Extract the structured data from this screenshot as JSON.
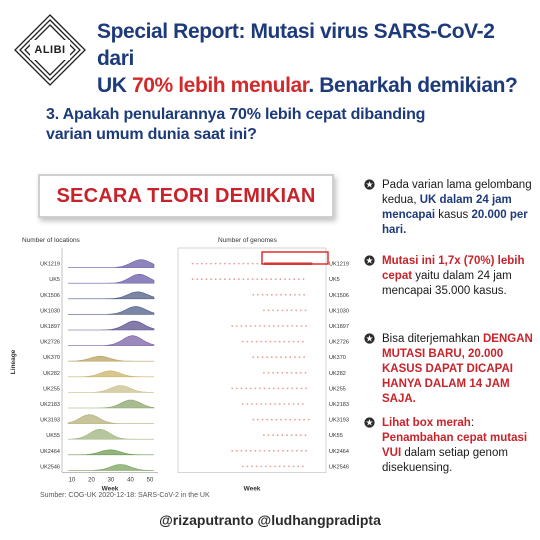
{
  "logo": {
    "text": "ALIBI"
  },
  "title": {
    "line1": "Special Report: Mutasi virus SARS-CoV-2 dari",
    "line2_a": "UK ",
    "line2_b": "70% lebih menular",
    "line2_c": ". Benarkah demikian?"
  },
  "question": {
    "line1": "3. Apakah penularannya 70% lebih cepat dibanding",
    "line2": "varian umum dunia saat ini?"
  },
  "banner": {
    "text": "SECARA TEORI DEMIKIAN"
  },
  "chart_data": [
    {
      "type": "area",
      "title": "Number of locations",
      "xlabel": "Week",
      "ylabel": "Lineage",
      "xticks": [
        "10",
        "20",
        "30",
        "40",
        "50"
      ],
      "categories": [
        "UK1219",
        "UK5",
        "UK1506",
        "UK1030",
        "UK1897",
        "UK2726",
        "UK370",
        "UK282",
        "UK255",
        "UK2183",
        "UK3193",
        "UK55",
        "UK2464",
        "UK2546"
      ],
      "colors": [
        "#6a5aa8",
        "#6a5aa8",
        "#4d5d86",
        "#4d5d86",
        "#5b4f8f",
        "#7b62a6",
        "#b8a15d",
        "#c9b46a",
        "#c9c08a",
        "#8aa56b",
        "#b6b07a",
        "#9db37c",
        "#6f9b52",
        "#79a35c"
      ]
    },
    {
      "type": "scatter",
      "title": "Number of genomes",
      "xlabel": "Week",
      "categories": [
        "UK1219",
        "UK5",
        "UK1506",
        "UK1030",
        "UK1897",
        "UK2726",
        "UK370",
        "UK282",
        "UK255",
        "UK2183",
        "UK3193",
        "UK55",
        "UK2464",
        "UK2546"
      ],
      "highlight": "UK1219",
      "highlight_color": "#e02020"
    }
  ],
  "source": {
    "text": "Sumber: COG-UK 2020-12-18: SARS-CoV-2 in the UK"
  },
  "bullets": {
    "b1": {
      "t1": "Pada varian lama gelombang kedua, ",
      "t2": "UK dalam 24 jam mencapai",
      "t3": " kasus ",
      "t4": "20.000 per hari."
    },
    "b2": {
      "t1": "Mutasi ini 1,7x (70%) lebih cepat",
      "t2": " yaitu dalam 24 jam mencapai 35.000 kasus."
    },
    "b3": {
      "t1": "Bisa diterjemahkan ",
      "t2": "DENGAN MUTASI BARU, 20.000 KASUS DAPAT DICAPAI HANYA DALAM 14 JAM SAJA."
    },
    "b4": {
      "t1": "Lihat box merah",
      "t2": ": ",
      "t3": "Penambahan cepat mutasi VUI",
      "t4": " dalam setiap genom disekuensing."
    }
  },
  "footer": {
    "text": "@rizaputranto @ludhangpradipta"
  },
  "colors": {
    "navy": "#1d3a7a",
    "red": "#c8232a",
    "accent_red": "#d22a2a"
  }
}
